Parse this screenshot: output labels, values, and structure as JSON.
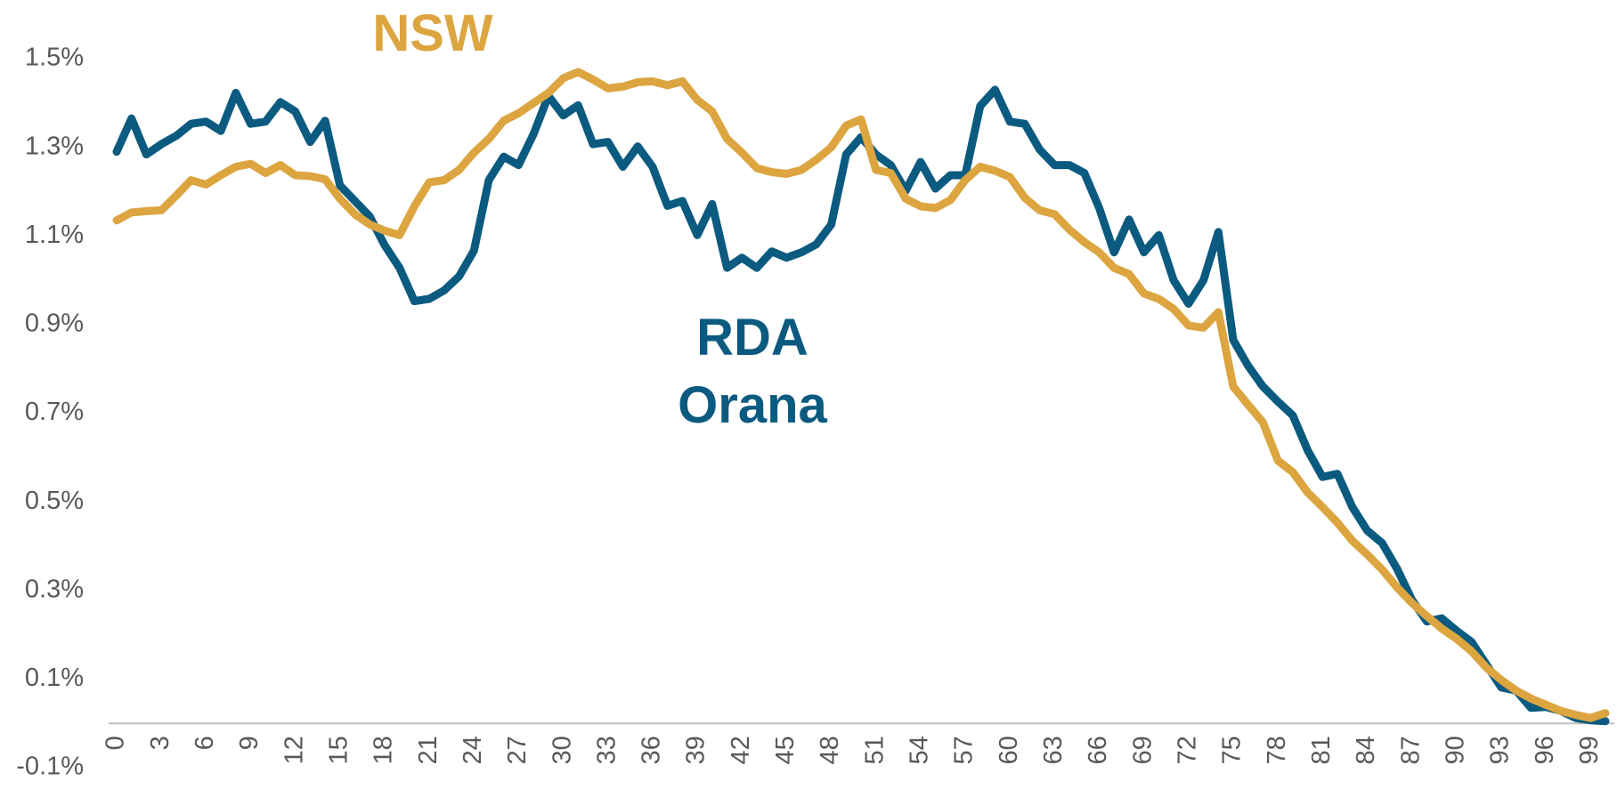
{
  "chart_data": {
    "type": "line",
    "x": [
      0,
      1,
      2,
      3,
      4,
      5,
      6,
      7,
      8,
      9,
      10,
      11,
      12,
      13,
      14,
      15,
      16,
      17,
      18,
      19,
      20,
      21,
      22,
      23,
      24,
      25,
      26,
      27,
      28,
      29,
      30,
      31,
      32,
      33,
      34,
      35,
      36,
      37,
      38,
      39,
      40,
      41,
      42,
      43,
      44,
      45,
      46,
      47,
      48,
      49,
      50,
      51,
      52,
      53,
      54,
      55,
      56,
      57,
      58,
      59,
      60,
      61,
      62,
      63,
      64,
      65,
      66,
      67,
      68,
      69,
      70,
      71,
      72,
      73,
      74,
      75,
      76,
      77,
      78,
      79,
      80,
      81,
      82,
      83,
      84,
      85,
      86,
      87,
      88,
      89,
      90,
      91,
      92,
      93,
      94,
      95,
      96,
      97,
      98,
      99,
      100
    ],
    "series": [
      {
        "name": "RDA Orana",
        "color": "#0b5a80",
        "values": [
          1.29,
          1.365,
          1.284,
          1.307,
          1.326,
          1.353,
          1.358,
          1.337,
          1.423,
          1.353,
          1.358,
          1.402,
          1.381,
          1.312,
          1.36,
          1.214,
          1.179,
          1.144,
          1.079,
          1.028,
          0.953,
          0.958,
          0.977,
          1.009,
          1.067,
          1.226,
          1.279,
          1.26,
          1.33,
          1.416,
          1.372,
          1.395,
          1.307,
          1.312,
          1.256,
          1.302,
          1.256,
          1.168,
          1.179,
          1.102,
          1.172,
          1.028,
          1.051,
          1.028,
          1.065,
          1.051,
          1.063,
          1.081,
          1.126,
          1.284,
          1.323,
          1.284,
          1.26,
          1.202,
          1.267,
          1.207,
          1.237,
          1.237,
          1.393,
          1.43,
          1.358,
          1.353,
          1.295,
          1.26,
          1.26,
          1.242,
          1.163,
          1.063,
          1.137,
          1.063,
          1.102,
          1.0,
          0.947,
          1.0,
          1.109,
          0.865,
          0.807,
          0.76,
          0.726,
          0.695,
          0.616,
          0.556,
          0.563,
          0.488,
          0.435,
          0.407,
          0.349,
          0.279,
          0.23,
          0.237,
          0.209,
          0.184,
          0.133,
          0.081,
          0.074,
          0.035,
          0.037,
          0.028,
          0.012,
          0.007,
          0.005
        ]
      },
      {
        "name": "NSW",
        "color": "#dca540",
        "values": [
          1.135,
          1.153,
          1.156,
          1.158,
          1.191,
          1.226,
          1.216,
          1.237,
          1.256,
          1.263,
          1.242,
          1.26,
          1.237,
          1.235,
          1.228,
          1.184,
          1.149,
          1.126,
          1.112,
          1.102,
          1.167,
          1.221,
          1.226,
          1.249,
          1.288,
          1.319,
          1.36,
          1.377,
          1.4,
          1.423,
          1.456,
          1.47,
          1.453,
          1.433,
          1.437,
          1.447,
          1.449,
          1.44,
          1.449,
          1.407,
          1.381,
          1.319,
          1.288,
          1.253,
          1.244,
          1.24,
          1.249,
          1.272,
          1.3,
          1.349,
          1.363,
          1.249,
          1.242,
          1.184,
          1.167,
          1.163,
          1.181,
          1.226,
          1.256,
          1.247,
          1.233,
          1.186,
          1.158,
          1.149,
          1.114,
          1.086,
          1.063,
          1.028,
          1.014,
          0.97,
          0.958,
          0.935,
          0.898,
          0.893,
          0.928,
          0.76,
          0.719,
          0.679,
          0.593,
          0.567,
          0.521,
          0.488,
          0.453,
          0.412,
          0.381,
          0.347,
          0.307,
          0.272,
          0.242,
          0.214,
          0.191,
          0.163,
          0.126,
          0.098,
          0.074,
          0.056,
          0.042,
          0.028,
          0.019,
          0.012,
          0.023
        ]
      }
    ],
    "xlim": [
      0,
      100
    ],
    "xticks": [
      0,
      3,
      6,
      9,
      12,
      15,
      18,
      21,
      24,
      27,
      30,
      33,
      36,
      39,
      42,
      45,
      48,
      51,
      54,
      57,
      60,
      63,
      66,
      69,
      72,
      75,
      78,
      81,
      84,
      87,
      90,
      93,
      96,
      99
    ],
    "ylim": [
      -0.1,
      1.5
    ],
    "yticks": [
      {
        "value": -0.1,
        "label": "-0.1%"
      },
      {
        "value": 0.1,
        "label": "0.1%"
      },
      {
        "value": 0.3,
        "label": "0.3%"
      },
      {
        "value": 0.5,
        "label": "0.5%"
      },
      {
        "value": 0.7,
        "label": "0.7%"
      },
      {
        "value": 0.9,
        "label": "0.9%"
      },
      {
        "value": 1.1,
        "label": "1.1%"
      },
      {
        "value": 1.3,
        "label": "1.3%"
      },
      {
        "value": 1.5,
        "label": "1.5%"
      }
    ],
    "grid": false
  }
}
